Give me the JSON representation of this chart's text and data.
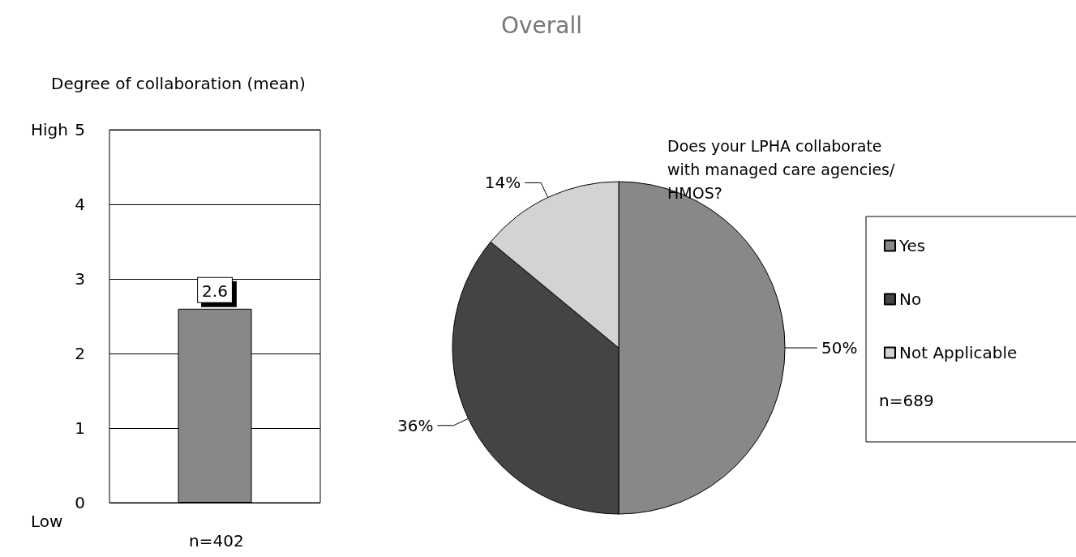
{
  "chart_data": [
    {
      "type": "bar",
      "title": "Degree of collaboration (mean)",
      "categories": [
        null
      ],
      "values": [
        2.6
      ],
      "color": "#888888",
      "ylim": [
        0,
        5
      ],
      "yticks": [
        0,
        1,
        2,
        3,
        4,
        5
      ],
      "grid": "y",
      "data_labels": true,
      "annotations": [
        "High",
        "Low",
        "n=402"
      ]
    },
    {
      "type": "pie",
      "title": "Overall",
      "subtitle": "Does your LPHA collaborate with managed care agencies/ HMOS?",
      "categories": [
        "Yes",
        "No",
        "Not Applicable"
      ],
      "values": [
        50,
        36,
        14
      ],
      "colors": [
        "#888888",
        "#444444",
        "#d3d3d3"
      ],
      "value_labels": [
        "50%",
        "36%",
        "14%"
      ],
      "legend": "right",
      "annotations": [
        "n=689"
      ]
    }
  ]
}
